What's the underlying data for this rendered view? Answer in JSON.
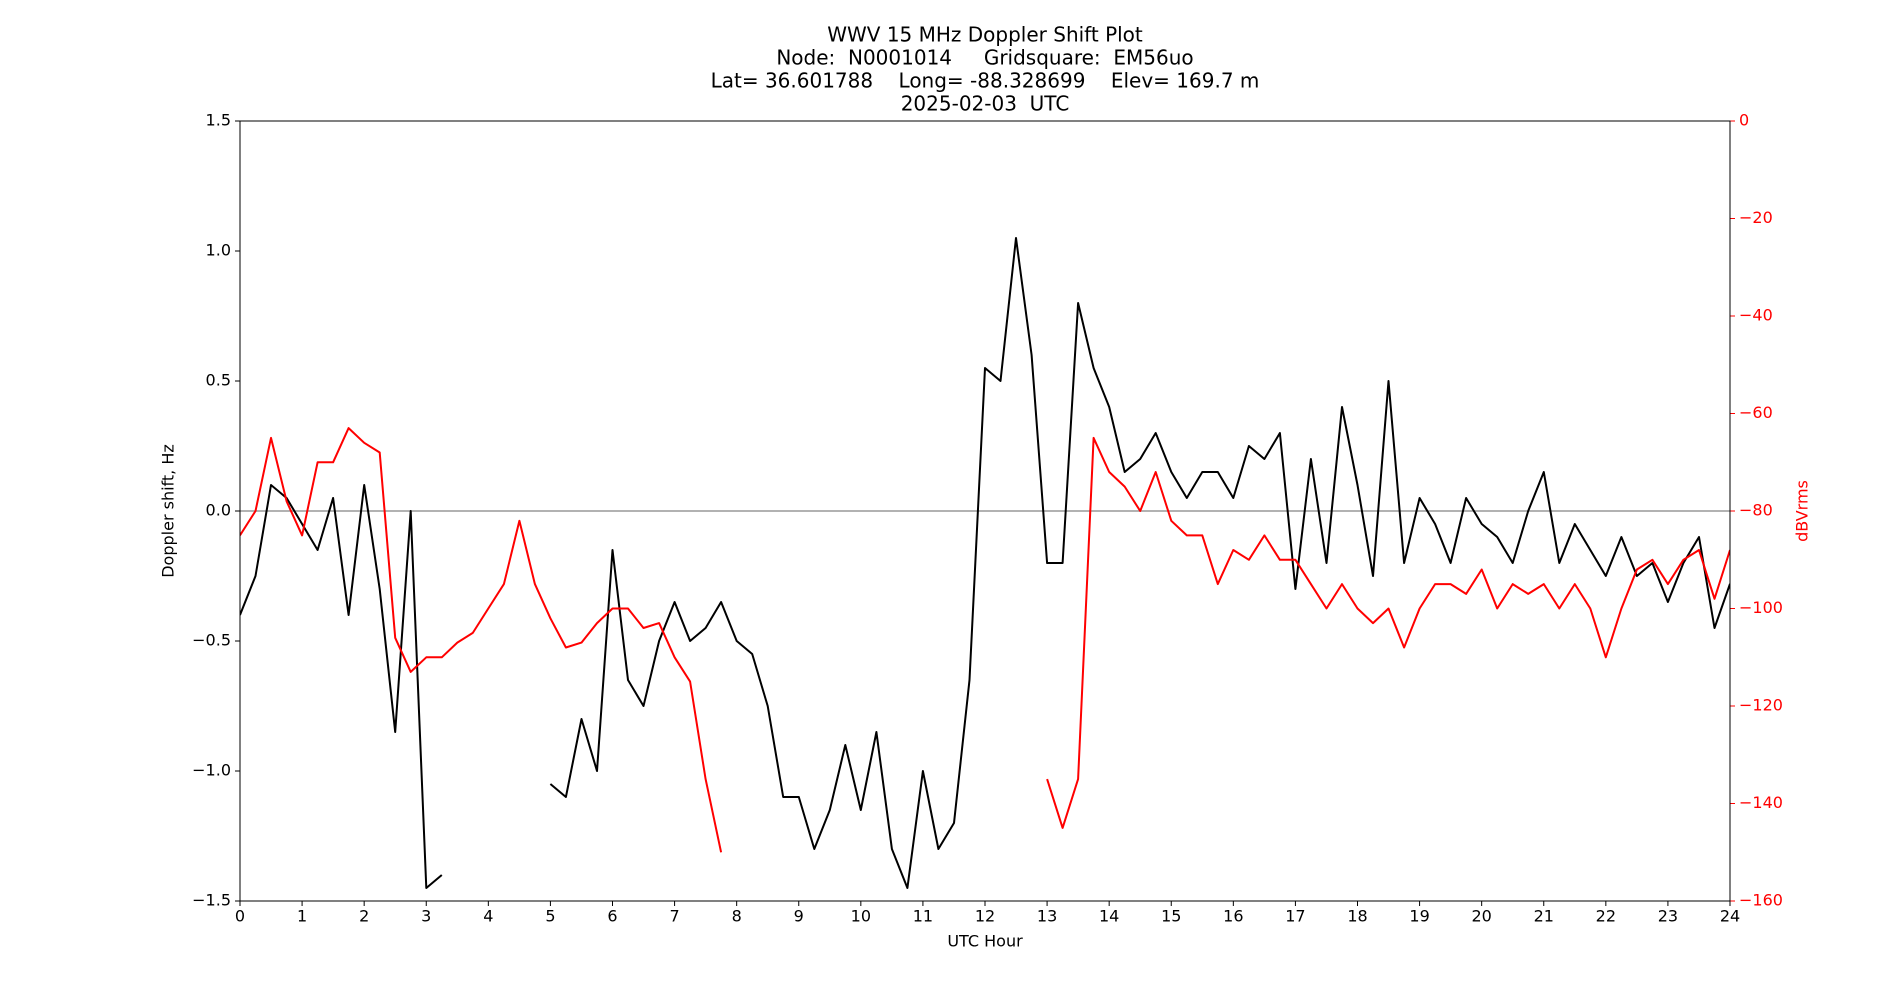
{
  "chart_data": {
    "type": "line",
    "title": [
      "WWV 15 MHz Doppler Shift Plot",
      "Node:  N0001014     Gridsquare:  EM56uo",
      "Lat= 36.601788    Long= -88.328699    Elev= 169.7 m",
      "2025-02-03  UTC"
    ],
    "x_label": "UTC Hour",
    "y_label": "Doppler shift, Hz",
    "y2_label": "dBVrms",
    "y2_color": "#ff0000",
    "zero_line": true,
    "xlim": [
      0,
      24
    ],
    "xticks": [
      0,
      1,
      2,
      3,
      4,
      5,
      6,
      7,
      8,
      9,
      10,
      11,
      12,
      13,
      14,
      15,
      16,
      17,
      18,
      19,
      20,
      21,
      22,
      23,
      24
    ],
    "ylim": [
      -1.5,
      1.5
    ],
    "yticks": [
      {
        "value": -1.5,
        "label": "−1.5"
      },
      {
        "value": -1.0,
        "label": "−1.0"
      },
      {
        "value": -0.5,
        "label": "−0.5"
      },
      {
        "value": 0,
        "label": "0.0"
      },
      {
        "value": 0.5,
        "label": "0.5"
      },
      {
        "value": 1.0,
        "label": "1.0"
      },
      {
        "value": 1.5,
        "label": "1.5"
      }
    ],
    "y2lim": [
      -160,
      0
    ],
    "y2ticks": [
      {
        "value": -160,
        "label": "−160"
      },
      {
        "value": -140,
        "label": "−140"
      },
      {
        "value": -120,
        "label": "−120"
      },
      {
        "value": -100,
        "label": "−100"
      },
      {
        "value": -80,
        "label": "−80"
      },
      {
        "value": -60,
        "label": "−60"
      },
      {
        "value": -40,
        "label": "−40"
      },
      {
        "value": -20,
        "label": "−20"
      },
      0
    ],
    "x": [
      0,
      0.25,
      0.5,
      0.75,
      1,
      1.25,
      1.5,
      1.75,
      2,
      2.25,
      2.5,
      2.75,
      3,
      3.25,
      3.5,
      3.75,
      4,
      4.25,
      4.5,
      4.75,
      5,
      5.25,
      5.5,
      5.75,
      6,
      6.25,
      6.5,
      6.75,
      7,
      7.25,
      7.5,
      7.75,
      8,
      8.25,
      8.5,
      8.75,
      9,
      9.25,
      9.5,
      9.75,
      10,
      10.25,
      10.5,
      10.75,
      11,
      11.25,
      11.5,
      11.75,
      12,
      12.25,
      12.5,
      12.75,
      13,
      13.25,
      13.5,
      13.75,
      14,
      14.25,
      14.5,
      14.75,
      15,
      15.25,
      15.5,
      15.75,
      16,
      16.25,
      16.5,
      16.75,
      17,
      17.25,
      17.5,
      17.75,
      18,
      18.25,
      18.5,
      18.75,
      19,
      19.25,
      19.5,
      19.75,
      20,
      20.25,
      20.5,
      20.75,
      21,
      21.25,
      21.5,
      21.75,
      22,
      22.25,
      22.5,
      22.75,
      23,
      23.25,
      23.5,
      23.75,
      24
    ],
    "series": [
      {
        "color": "#000000",
        "values": [
          -0.4,
          -0.25,
          0.1,
          0.05,
          -0.05,
          -0.15,
          0.05,
          -0.4,
          0.1,
          -0.3,
          -0.85,
          0.0,
          -1.45,
          -1.4,
          null,
          null,
          null,
          null,
          null,
          null,
          -1.05,
          -1.1,
          -0.8,
          -1.0,
          -0.15,
          -0.65,
          -0.75,
          -0.5,
          -0.35,
          -0.5,
          -0.45,
          -0.35,
          -0.5,
          -0.55,
          -0.75,
          -1.1,
          -1.1,
          -1.3,
          -1.15,
          -0.9,
          -1.15,
          -0.85,
          -1.3,
          -1.45,
          -1.0,
          -1.3,
          -1.2,
          -0.65,
          0.55,
          0.5,
          1.05,
          0.6,
          -0.2,
          -0.2,
          0.8,
          0.55,
          0.4,
          0.15,
          0.2,
          0.3,
          0.15,
          0.05,
          0.15,
          0.15,
          0.05,
          0.25,
          0.2,
          0.3,
          -0.3,
          0.2,
          -0.2,
          0.4,
          0.1,
          -0.25,
          0.5,
          -0.2,
          0.05,
          -0.05,
          -0.2,
          0.05,
          -0.05,
          -0.1,
          -0.2,
          0.0,
          0.15,
          -0.2,
          -0.05,
          -0.15,
          -0.25,
          -0.1,
          -0.25,
          -0.2,
          -0.35,
          -0.2,
          -0.1,
          -0.45,
          -0.28
        ]
      },
      {
        "color": "#ff0000",
        "axis": "y2",
        "values": [
          -85,
          -80,
          -65,
          -78,
          -85,
          -70,
          -70,
          -63,
          -66,
          -68,
          -106,
          -113,
          -110,
          -110,
          -107,
          -105,
          -100,
          -95,
          -82,
          -95,
          -102,
          -108,
          -107,
          -103,
          -100,
          -100,
          -104,
          -103,
          -110,
          -115,
          -135,
          -150,
          null,
          null,
          null,
          null,
          null,
          null,
          null,
          null,
          null,
          null,
          null,
          null,
          null,
          null,
          null,
          null,
          null,
          null,
          null,
          null,
          -135,
          -145,
          -135,
          -65,
          -72,
          -75,
          -80,
          -72,
          -82,
          -85,
          -85,
          -95,
          -88,
          -90,
          -85,
          -90,
          -90,
          -95,
          -100,
          -95,
          -100,
          -103,
          -100,
          -108,
          -100,
          -95,
          -95,
          -97,
          -92,
          -100,
          -95,
          -97,
          -95,
          -100,
          -95,
          -100,
          -110,
          -100,
          -92,
          -90,
          -95,
          -90,
          -88,
          -98,
          -88
        ]
      }
    ]
  }
}
